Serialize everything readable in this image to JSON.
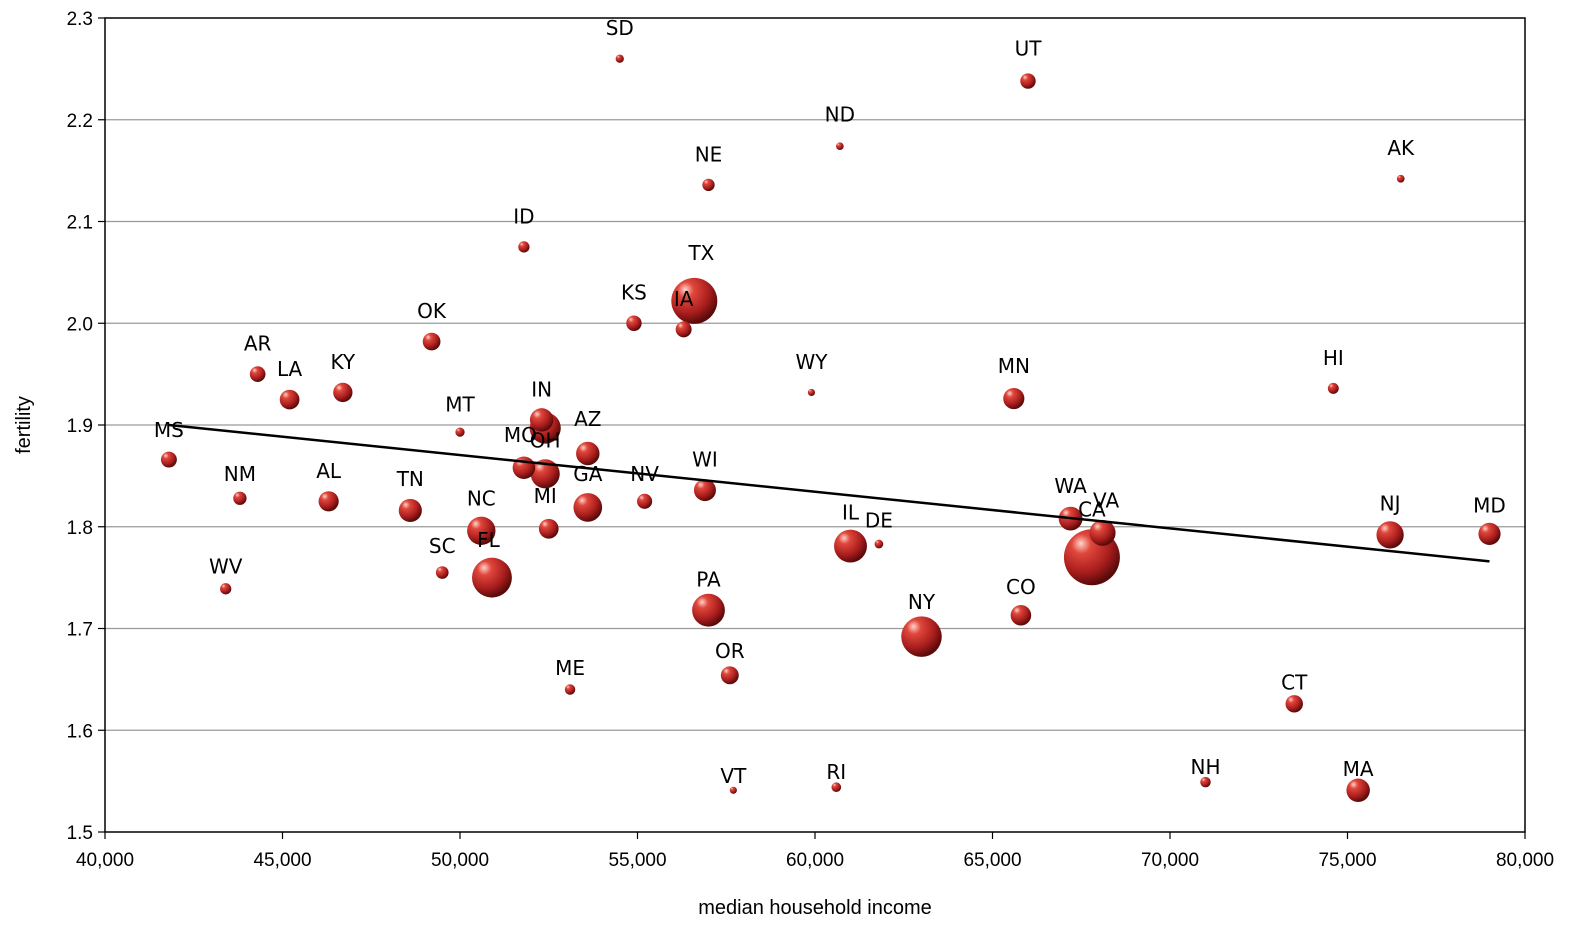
{
  "chart_data": {
    "type": "scatter",
    "title": "",
    "xlabel": "median household income",
    "ylabel": "fertility",
    "xlim": [
      40000,
      80000
    ],
    "ylim": [
      1.5,
      2.3
    ],
    "x_ticks": [
      "40,000",
      "45,000",
      "50,000",
      "55,000",
      "60,000",
      "65,000",
      "70,000",
      "75,000",
      "80,000"
    ],
    "y_ticks": [
      "1.5",
      "1.6",
      "1.7",
      "1.8",
      "1.9",
      "2.0",
      "2.1",
      "2.2",
      "2.3"
    ],
    "grid": "horizontal",
    "marker_color": "#b22222",
    "trendline": {
      "x": [
        41800,
        79000
      ],
      "y": [
        1.9,
        1.766
      ]
    },
    "points": [
      {
        "label": "SD",
        "x": 54500,
        "y": 2.26,
        "size": 0.8
      },
      {
        "label": "UT",
        "x": 66000,
        "y": 2.238,
        "size": 2.8
      },
      {
        "label": "ND",
        "x": 60700,
        "y": 2.174,
        "size": 0.7
      },
      {
        "label": "AK",
        "x": 76500,
        "y": 2.142,
        "size": 0.7
      },
      {
        "label": "NE",
        "x": 57000,
        "y": 2.136,
        "size": 1.8
      },
      {
        "label": "ID",
        "x": 51800,
        "y": 2.075,
        "size": 1.5
      },
      {
        "label": "TX",
        "x": 56600,
        "y": 2.022,
        "size": 25
      },
      {
        "label": "KS",
        "x": 54900,
        "y": 2.0,
        "size": 2.8
      },
      {
        "label": "IA",
        "x": 56300,
        "y": 1.994,
        "size": 3.0
      },
      {
        "label": "OK",
        "x": 49200,
        "y": 1.982,
        "size": 3.7
      },
      {
        "label": "AR",
        "x": 44300,
        "y": 1.95,
        "size": 2.9
      },
      {
        "label": "HI",
        "x": 74600,
        "y": 1.936,
        "size": 1.4
      },
      {
        "label": "KY",
        "x": 46700,
        "y": 1.932,
        "size": 4.4
      },
      {
        "label": "WY",
        "x": 59900,
        "y": 1.932,
        "size": 0.6
      },
      {
        "label": "MN",
        "x": 65600,
        "y": 1.926,
        "size": 5.3
      },
      {
        "label": "LA",
        "x": 45200,
        "y": 1.925,
        "size": 4.6
      },
      {
        "label": "IN",
        "x": 52300,
        "y": 1.905,
        "size": 6.5
      },
      {
        "label": "MT",
        "x": 50000,
        "y": 1.893,
        "size": 1.0
      },
      {
        "label": "OH",
        "x": 52400,
        "y": 1.897,
        "size": 11.5
      },
      {
        "label": "AZ",
        "x": 53600,
        "y": 1.872,
        "size": 6.5
      },
      {
        "label": "MS",
        "x": 41800,
        "y": 1.866,
        "size": 3.0
      },
      {
        "label": "MO",
        "x": 51800,
        "y": 1.858,
        "size": 6.0
      },
      {
        "label": "MI",
        "x": 52400,
        "y": 1.852,
        "size": 10.0
      },
      {
        "label": "WI",
        "x": 56900,
        "y": 1.836,
        "size": 5.7
      },
      {
        "label": "NM",
        "x": 43800,
        "y": 1.828,
        "size": 2.1
      },
      {
        "label": "AL",
        "x": 46300,
        "y": 1.825,
        "size": 4.8
      },
      {
        "label": "NV",
        "x": 55200,
        "y": 1.825,
        "size": 2.7
      },
      {
        "label": "GA",
        "x": 53600,
        "y": 1.819,
        "size": 9.7
      },
      {
        "label": "TN",
        "x": 48600,
        "y": 1.816,
        "size": 6.3
      },
      {
        "label": "WA",
        "x": 67200,
        "y": 1.808,
        "size": 6.7
      },
      {
        "label": "NC",
        "x": 50600,
        "y": 1.796,
        "size": 9.5
      },
      {
        "label": "NJ",
        "x": 76200,
        "y": 1.792,
        "size": 8.8
      },
      {
        "label": "MD",
        "x": 79000,
        "y": 1.793,
        "size": 5.8
      },
      {
        "label": "VA",
        "x": 68100,
        "y": 1.794,
        "size": 8.0
      },
      {
        "label": "SC",
        "x": 52500,
        "y": 1.798,
        "size": 4.6
      },
      {
        "label": "IL",
        "x": 61000,
        "y": 1.781,
        "size": 12.8
      },
      {
        "label": "DE",
        "x": 61800,
        "y": 1.783,
        "size": 0.9
      },
      {
        "label": "CA",
        "x": 67800,
        "y": 1.77,
        "size": 37
      },
      {
        "label": "FL",
        "x": 50900,
        "y": 1.75,
        "size": 18.8
      },
      {
        "label": "WV",
        "x": 49500,
        "y": 1.755,
        "size": 1.9
      },
      {
        "label": "WV_dot",
        "x": 43400,
        "y": 1.739,
        "size": 1.5
      },
      {
        "label": "PA",
        "x": 57000,
        "y": 1.718,
        "size": 12.7
      },
      {
        "label": "CO",
        "x": 65800,
        "y": 1.713,
        "size": 5.0
      },
      {
        "label": "NY",
        "x": 63000,
        "y": 1.692,
        "size": 19.4
      },
      {
        "label": "OR",
        "x": 57600,
        "y": 1.654,
        "size": 3.8
      },
      {
        "label": "ME",
        "x": 53100,
        "y": 1.64,
        "size": 1.3
      },
      {
        "label": "CT",
        "x": 73500,
        "y": 1.626,
        "size": 3.6
      },
      {
        "label": "NH",
        "x": 71000,
        "y": 1.549,
        "size": 1.3
      },
      {
        "label": "RI",
        "x": 60600,
        "y": 1.544,
        "size": 1.1
      },
      {
        "label": "VT",
        "x": 57700,
        "y": 1.541,
        "size": 0.6
      },
      {
        "label": "MA",
        "x": 75300,
        "y": 1.541,
        "size": 6.5
      }
    ],
    "labels": [
      {
        "text": "SD",
        "x": 54500,
        "y": 2.29
      },
      {
        "text": "UT",
        "x": 66000,
        "y": 2.27
      },
      {
        "text": "ND",
        "x": 60700,
        "y": 2.205
      },
      {
        "text": "AK",
        "x": 76500,
        "y": 2.172
      },
      {
        "text": "NE",
        "x": 57000,
        "y": 2.166
      },
      {
        "text": "ID",
        "x": 51800,
        "y": 2.105
      },
      {
        "text": "TX",
        "x": 56800,
        "y": 2.069
      },
      {
        "text": "KS",
        "x": 54900,
        "y": 2.03
      },
      {
        "text": "IA",
        "x": 56300,
        "y": 2.024
      },
      {
        "text": "OK",
        "x": 49200,
        "y": 2.012
      },
      {
        "text": "AR",
        "x": 44300,
        "y": 1.98
      },
      {
        "text": "LA",
        "x": 45200,
        "y": 1.955
      },
      {
        "text": "KY",
        "x": 46700,
        "y": 1.962
      },
      {
        "text": "HI",
        "x": 74600,
        "y": 1.966
      },
      {
        "text": "WY",
        "x": 59900,
        "y": 1.962
      },
      {
        "text": "MN",
        "x": 65600,
        "y": 1.958
      },
      {
        "text": "MT",
        "x": 50000,
        "y": 1.92
      },
      {
        "text": "IN",
        "x": 52300,
        "y": 1.935
      },
      {
        "text": "MS",
        "x": 41800,
        "y": 1.895
      },
      {
        "text": "MO",
        "x": 51700,
        "y": 1.89
      },
      {
        "text": "OH",
        "x": 52400,
        "y": 1.885
      },
      {
        "text": "AZ",
        "x": 53600,
        "y": 1.906
      },
      {
        "text": "NM",
        "x": 43800,
        "y": 1.852
      },
      {
        "text": "AL",
        "x": 46300,
        "y": 1.855
      },
      {
        "text": "TN",
        "x": 48600,
        "y": 1.847
      },
      {
        "text": "WI",
        "x": 56900,
        "y": 1.866
      },
      {
        "text": "NV",
        "x": 55200,
        "y": 1.852
      },
      {
        "text": "GA",
        "x": 53600,
        "y": 1.852
      },
      {
        "text": "NC",
        "x": 50600,
        "y": 1.828
      },
      {
        "text": "MI",
        "x": 52400,
        "y": 1.83
      },
      {
        "text": "WA",
        "x": 67200,
        "y": 1.84
      },
      {
        "text": "VA",
        "x": 68200,
        "y": 1.826
      },
      {
        "text": "CA",
        "x": 67800,
        "y": 1.817
      },
      {
        "text": "NJ",
        "x": 76200,
        "y": 1.823
      },
      {
        "text": "MD",
        "x": 79000,
        "y": 1.821
      },
      {
        "text": "IL",
        "x": 61000,
        "y": 1.814
      },
      {
        "text": "DE",
        "x": 61800,
        "y": 1.806
      },
      {
        "text": "SC",
        "x": 49500,
        "y": 1.781
      },
      {
        "text": "FL",
        "x": 50800,
        "y": 1.787
      },
      {
        "text": "WV",
        "x": 43400,
        "y": 1.761
      },
      {
        "text": "PA",
        "x": 57000,
        "y": 1.748
      },
      {
        "text": "CO",
        "x": 65800,
        "y": 1.741
      },
      {
        "text": "NY",
        "x": 63000,
        "y": 1.726
      },
      {
        "text": "OR",
        "x": 57600,
        "y": 1.678
      },
      {
        "text": "ME",
        "x": 53100,
        "y": 1.661
      },
      {
        "text": "CT",
        "x": 73500,
        "y": 1.647
      },
      {
        "text": "NH",
        "x": 71000,
        "y": 1.564
      },
      {
        "text": "RI",
        "x": 60600,
        "y": 1.559
      },
      {
        "text": "VT",
        "x": 57700,
        "y": 1.555
      },
      {
        "text": "MA",
        "x": 75300,
        "y": 1.562
      }
    ]
  }
}
